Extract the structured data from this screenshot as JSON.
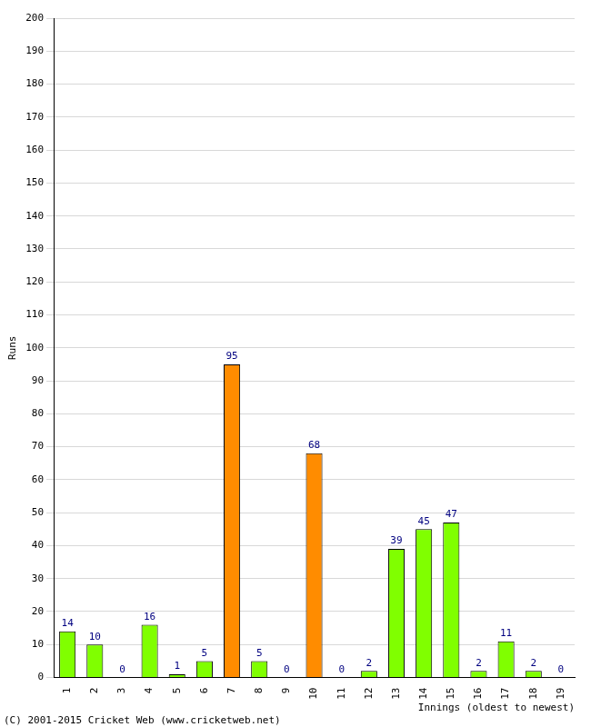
{
  "chart_data": {
    "type": "bar",
    "categories": [
      "1",
      "2",
      "3",
      "4",
      "5",
      "6",
      "7",
      "8",
      "9",
      "10",
      "11",
      "12",
      "13",
      "14",
      "15",
      "16",
      "17",
      "18",
      "19"
    ],
    "values": [
      14,
      10,
      0,
      16,
      1,
      5,
      95,
      5,
      0,
      68,
      0,
      2,
      39,
      45,
      47,
      2,
      11,
      2,
      0
    ],
    "colors": [
      "#80ff00",
      "#80ff00",
      "#80ff00",
      "#80ff00",
      "#80ff00",
      "#80ff00",
      "#ff8c00",
      "#80ff00",
      "#80ff00",
      "#ff8c00",
      "#80ff00",
      "#80ff00",
      "#80ff00",
      "#80ff00",
      "#80ff00",
      "#80ff00",
      "#80ff00",
      "#80ff00",
      "#80ff00"
    ],
    "x_label": "Innings (oldest to newest)",
    "y_label": "Runs",
    "ylim": [
      0,
      200
    ],
    "yticks": [
      0,
      10,
      20,
      30,
      40,
      50,
      60,
      70,
      80,
      90,
      100,
      110,
      120,
      130,
      140,
      150,
      160,
      170,
      180,
      190,
      200
    ],
    "grid": true,
    "data_labels": true,
    "annotations": [
      "(C) 2001-2015 Cricket Web (www.cricketweb.net)"
    ]
  }
}
